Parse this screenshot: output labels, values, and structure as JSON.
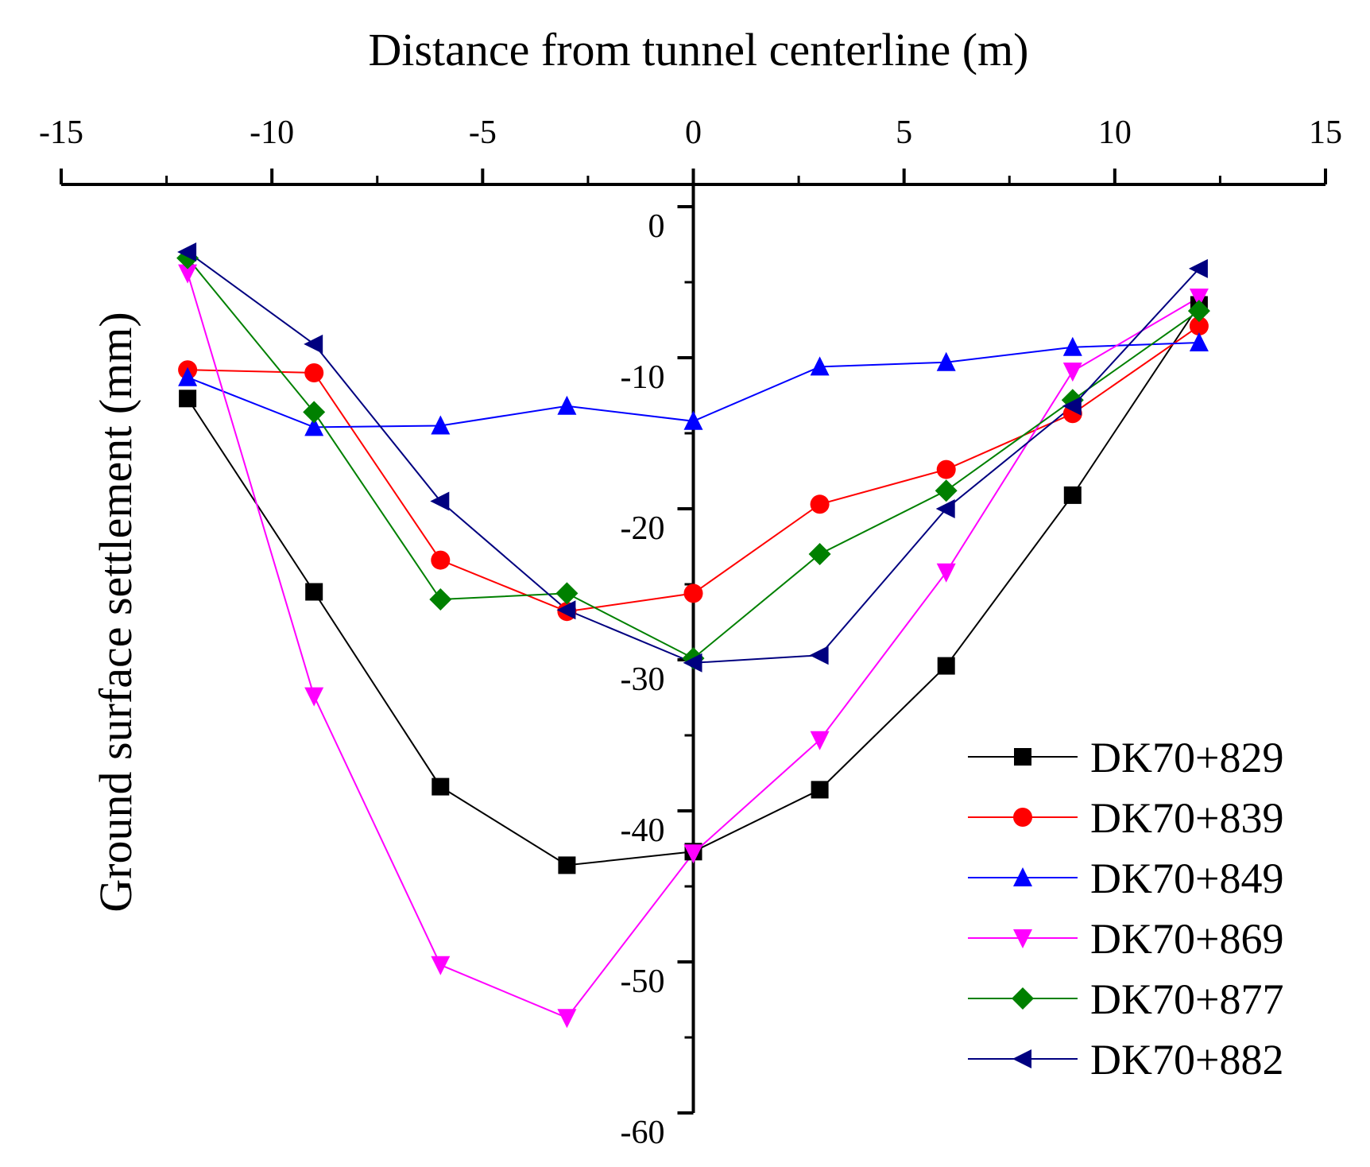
{
  "chart_data": {
    "type": "line",
    "title": "",
    "xlabel": "Distance from tunnel centerline (m)",
    "ylabel": "Ground surface settlement (mm)",
    "xlim": [
      -15,
      15
    ],
    "ylim": [
      -60,
      0
    ],
    "x_ticks": [
      -15,
      -10,
      -5,
      0,
      5,
      10,
      15
    ],
    "y_ticks": [
      0,
      -10,
      -20,
      -30,
      -40,
      -50,
      -60
    ],
    "legend_position": "bottom-right",
    "x": [
      -12,
      -9,
      -6,
      -3,
      0,
      3,
      6,
      9,
      12
    ],
    "series": [
      {
        "name": "DK70+829",
        "color": "#000000",
        "marker": "square",
        "values": [
          -12.7,
          -25.5,
          -38.4,
          -43.6,
          -42.7,
          -38.6,
          -30.4,
          -19.1,
          -6.5
        ]
      },
      {
        "name": "DK70+839",
        "color": "#ff0000",
        "marker": "circle",
        "values": [
          -10.8,
          -11.0,
          -23.4,
          -26.8,
          -25.6,
          -19.7,
          -17.4,
          -13.7,
          -7.9
        ]
      },
      {
        "name": "DK70+849",
        "color": "#0000ff",
        "marker": "triangle-up",
        "values": [
          -11.3,
          -14.6,
          -14.5,
          -13.2,
          -14.2,
          -10.6,
          -10.3,
          -9.3,
          -9.0
        ]
      },
      {
        "name": "DK70+869",
        "color": "#ff00ff",
        "marker": "triangle-down",
        "values": [
          -4.4,
          -32.4,
          -50.2,
          -53.7,
          -42.8,
          -35.3,
          -24.2,
          -10.9,
          -6.0
        ]
      },
      {
        "name": "DK70+877",
        "color": "#008000",
        "marker": "diamond",
        "values": [
          -3.4,
          -13.6,
          -26.0,
          -25.6,
          -29.9,
          -23.0,
          -18.8,
          -12.8,
          -6.9
        ]
      },
      {
        "name": "DK70+882",
        "color": "#000080",
        "marker": "triangle-left",
        "values": [
          -3.0,
          -9.1,
          -19.5,
          -26.7,
          -30.2,
          -29.7,
          -20.0,
          -13.2,
          -4.1
        ]
      }
    ]
  }
}
